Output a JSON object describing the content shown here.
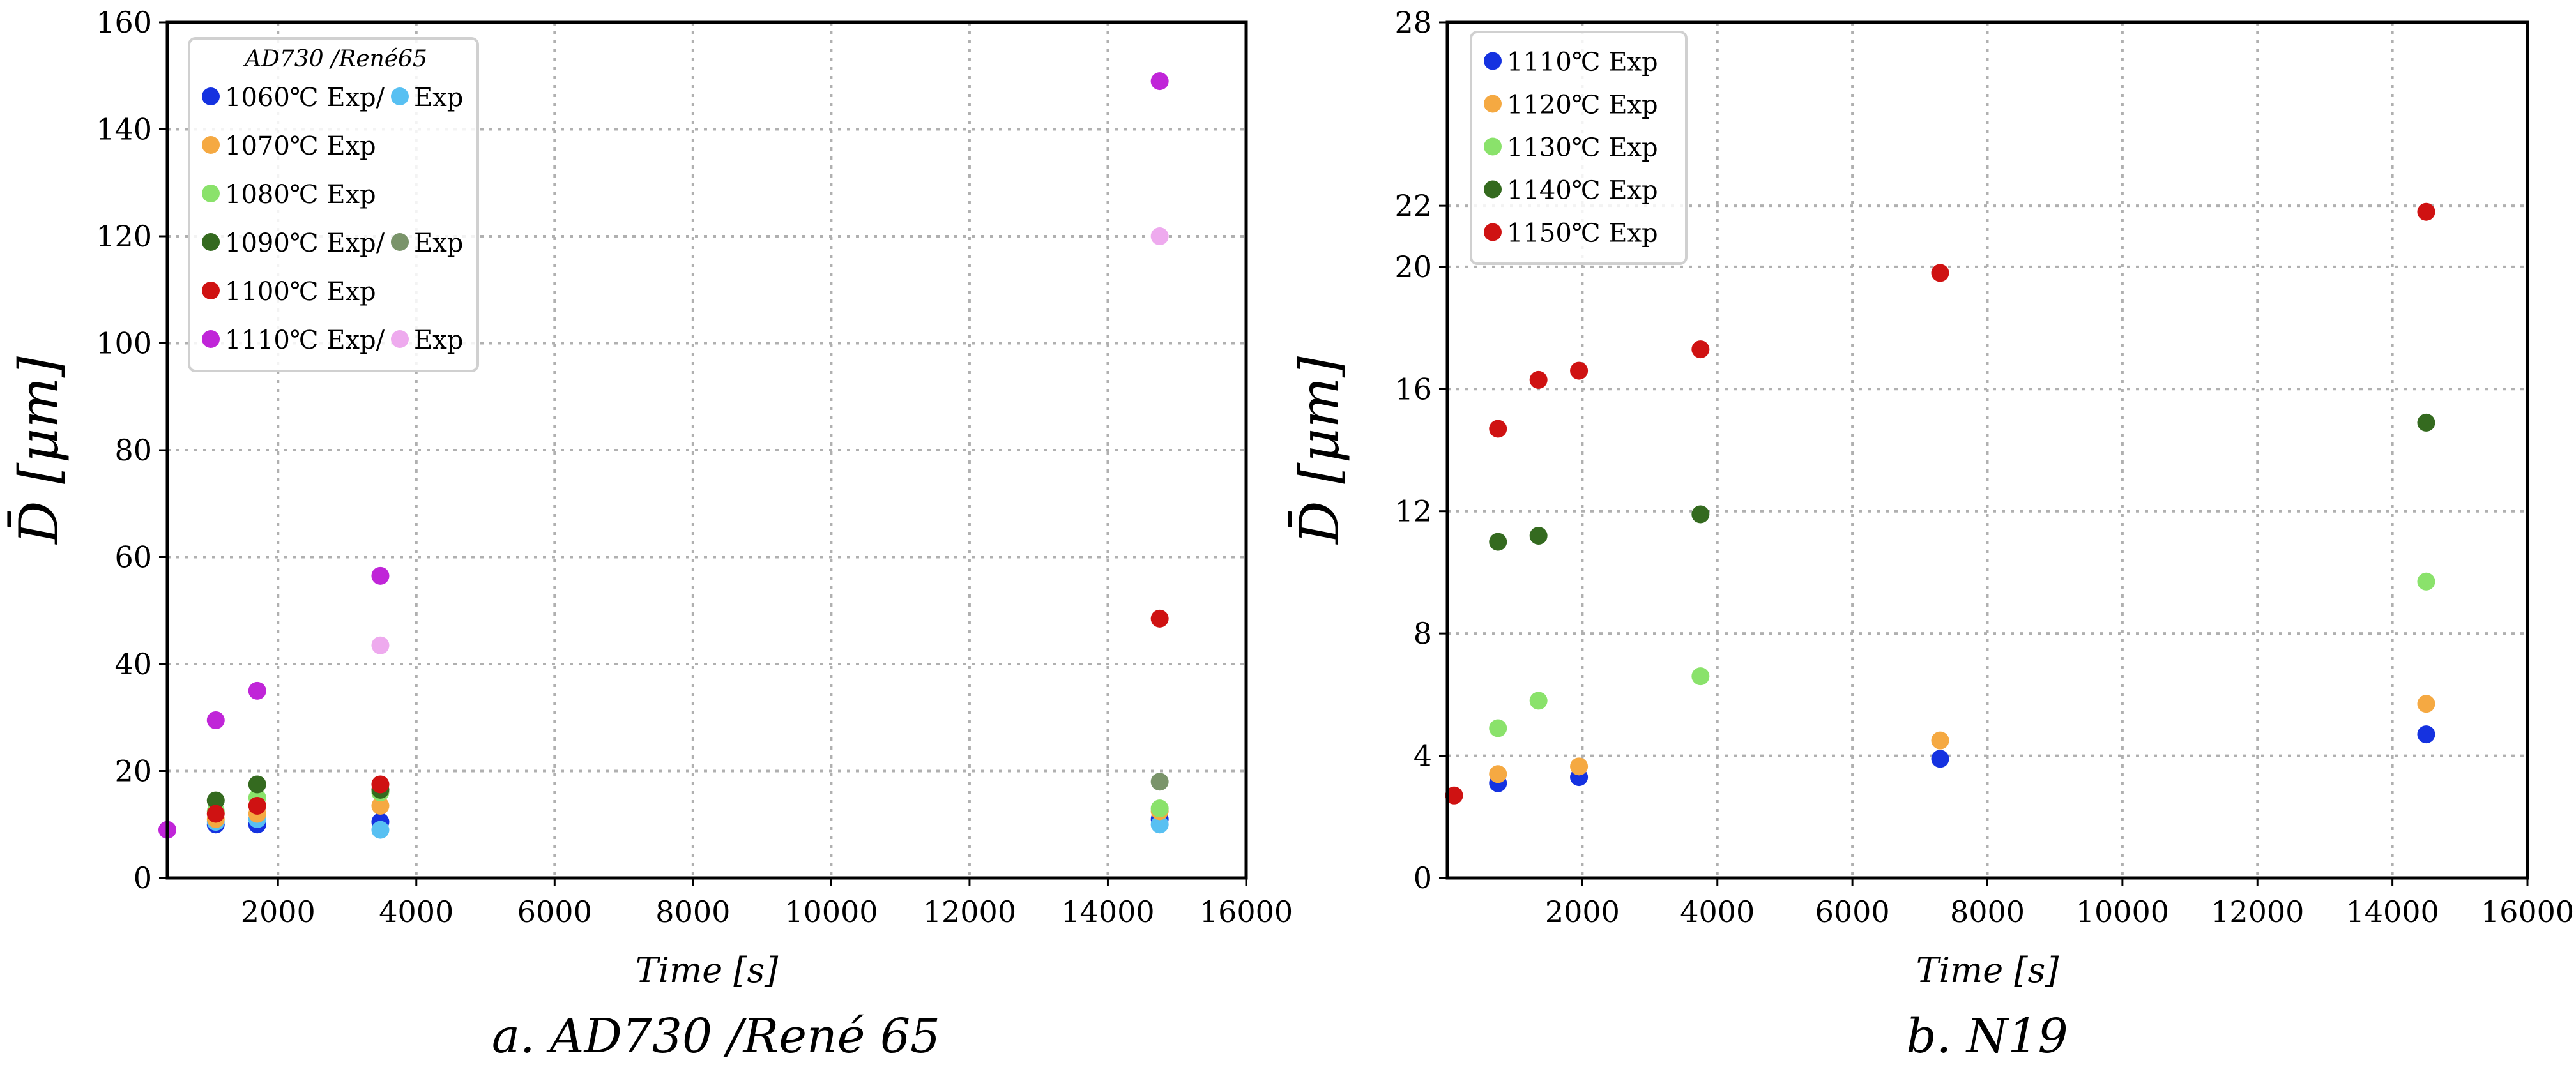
{
  "chart_data": [
    {
      "type": "scatter",
      "title": "",
      "caption": "a. AD730 /René 65",
      "xlabel": "Time [s]",
      "ylabel": "D̄ [μm]",
      "xlim": [
        400,
        16000
      ],
      "ylim": [
        0,
        160
      ],
      "xticks": [
        2000,
        4000,
        6000,
        8000,
        10000,
        12000,
        14000,
        16000
      ],
      "yticks": [
        0,
        20,
        40,
        60,
        80,
        100,
        120,
        140,
        160
      ],
      "grid": true,
      "legend": {
        "placement": "top-left",
        "title": "AD730 /René65",
        "entries": [
          {
            "label": "1060℃ Exp/",
            "color": "#1532e0",
            "label2": "Exp",
            "color2": "#58c0f2"
          },
          {
            "label": "1070℃ Exp",
            "color": "#f5a942"
          },
          {
            "label": "1080℃ Exp",
            "color": "#8ae26b"
          },
          {
            "label": "1090℃ Exp/",
            "color": "#346a1f",
            "label2": "Exp",
            "color2": "#7a946a"
          },
          {
            "label": "1100℃ Exp",
            "color": "#cf1212"
          },
          {
            "label": "1110℃ Exp/",
            "color": "#c025d8",
            "label2": "Exp",
            "color2": "#eeaaee"
          }
        ]
      },
      "series": [
        {
          "name": "1060℃ Exp (AD730)",
          "color": "#1532e0",
          "x": [
            1100,
            1700,
            3480,
            14750
          ],
          "y": [
            10,
            10,
            10.5,
            11
          ]
        },
        {
          "name": "1060℃ Exp (René 65)",
          "color": "#58c0f2",
          "x": [
            1100,
            1700,
            3480,
            14750
          ],
          "y": [
            10.5,
            11,
            9,
            10
          ]
        },
        {
          "name": "1070℃ Exp",
          "color": "#f5a942",
          "x": [
            1100,
            1700,
            3480,
            14750
          ],
          "y": [
            11,
            12,
            13.5,
            12.5
          ]
        },
        {
          "name": "1080℃ Exp",
          "color": "#8ae26b",
          "x": [
            1100,
            1700,
            3480,
            14750
          ],
          "y": [
            12.5,
            15,
            16,
            13
          ]
        },
        {
          "name": "1090℃ Exp (AD730)",
          "color": "#346a1f",
          "x": [
            1100,
            1700,
            3480
          ],
          "y": [
            14.5,
            17.5,
            16.5
          ]
        },
        {
          "name": "1090℃ Exp (René 65)",
          "color": "#7a946a",
          "x": [
            14750
          ],
          "y": [
            18
          ]
        },
        {
          "name": "1100℃ Exp",
          "color": "#cf1212",
          "x": [
            1100,
            1700,
            3480,
            14750
          ],
          "y": [
            12,
            13.5,
            17.5,
            48.5
          ]
        },
        {
          "name": "1110℃ Exp (René 65)",
          "color": "#eeaaee",
          "x": [
            3480,
            14750
          ],
          "y": [
            43.5,
            120
          ]
        },
        {
          "name": "1110℃ Exp (AD730)",
          "color": "#c025d8",
          "x": [
            400,
            1100,
            1700,
            3480,
            14750
          ],
          "y": [
            9,
            29.5,
            35,
            56.5,
            149
          ]
        }
      ]
    },
    {
      "type": "scatter",
      "title": "",
      "caption": "b. N19",
      "xlabel": "Time [s]",
      "ylabel": "D̄ [μm]",
      "xlim": [
        0,
        16000
      ],
      "ylim": [
        0,
        28
      ],
      "xticks": [
        2000,
        4000,
        6000,
        8000,
        10000,
        12000,
        14000,
        16000
      ],
      "yticks": [
        0,
        4,
        8,
        12,
        16,
        20,
        22,
        28
      ],
      "grid": true,
      "legend": {
        "placement": "top-left",
        "title": "",
        "entries": [
          {
            "label": "1110℃ Exp",
            "color": "#1532e0"
          },
          {
            "label": "1120℃ Exp",
            "color": "#f5a942"
          },
          {
            "label": "1130℃ Exp",
            "color": "#8ae26b"
          },
          {
            "label": "1140℃ Exp",
            "color": "#346a1f"
          },
          {
            "label": "1150℃ Exp",
            "color": "#cf1212"
          }
        ]
      },
      "series": [
        {
          "name": "1110℃ Exp",
          "color": "#1532e0",
          "x": [
            750,
            1950,
            7300,
            14500
          ],
          "y": [
            3.1,
            3.3,
            3.9,
            4.7
          ]
        },
        {
          "name": "1120℃ Exp",
          "color": "#f5a942",
          "x": [
            750,
            1950,
            7300,
            14500
          ],
          "y": [
            3.4,
            3.65,
            4.5,
            5.7
          ]
        },
        {
          "name": "1130℃ Exp",
          "color": "#8ae26b",
          "x": [
            750,
            1350,
            3750,
            14500
          ],
          "y": [
            4.9,
            5.8,
            6.6,
            9.7
          ]
        },
        {
          "name": "1140℃ Exp",
          "color": "#346a1f",
          "x": [
            750,
            1350,
            3750,
            14500
          ],
          "y": [
            11.0,
            11.2,
            11.9,
            14.9
          ]
        },
        {
          "name": "1150℃ Exp",
          "color": "#cf1212",
          "x": [
            100,
            750,
            1350,
            1950,
            3750,
            7300,
            14500
          ],
          "y": [
            2.7,
            14.7,
            16.3,
            16.6,
            17.3,
            19.8,
            21.8
          ]
        }
      ]
    }
  ]
}
